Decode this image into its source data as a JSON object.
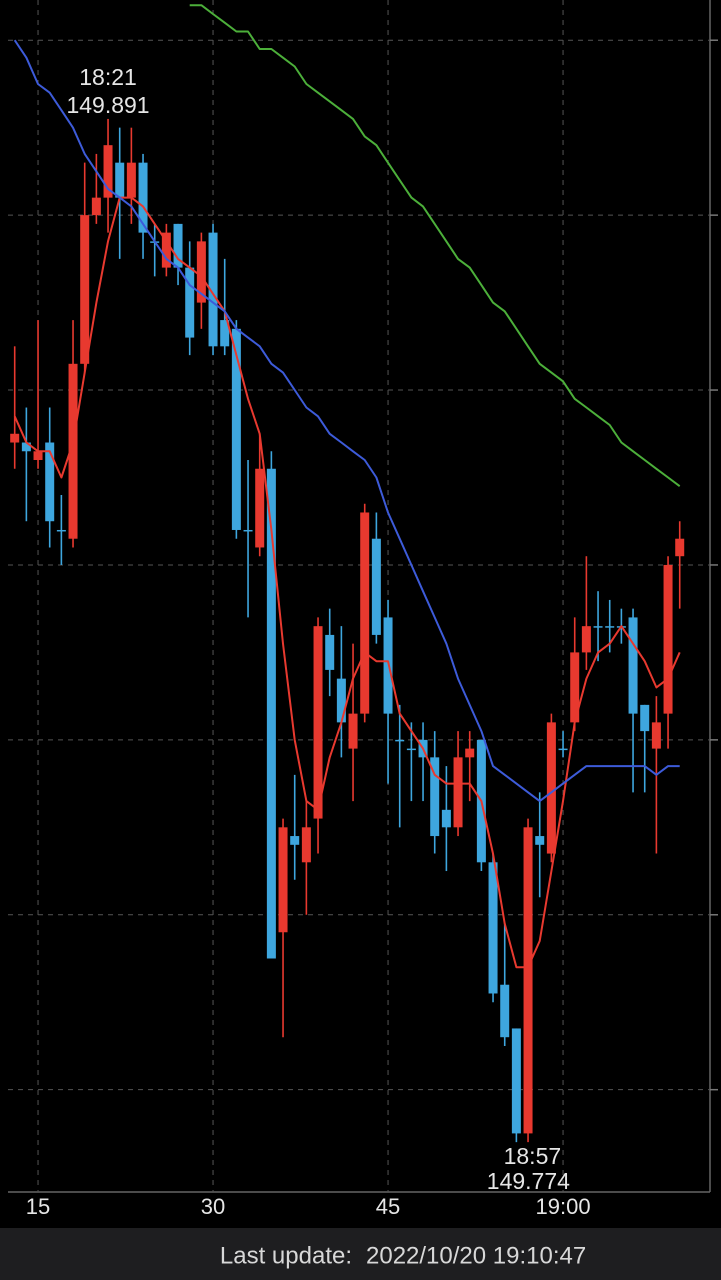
{
  "chart_data": {
    "type": "candlestick",
    "categories": [
      null,
      null,
      "15",
      null,
      null,
      null,
      null,
      null,
      null,
      null,
      null,
      null,
      null,
      null,
      null,
      null,
      null,
      "30",
      null,
      null,
      null,
      null,
      null,
      null,
      null,
      null,
      null,
      null,
      null,
      null,
      null,
      null,
      "45",
      null,
      null,
      null,
      null,
      null,
      null,
      null,
      null,
      null,
      null,
      null,
      null,
      null,
      null,
      "19:00",
      null,
      null,
      null,
      null,
      null,
      null,
      null,
      null,
      null,
      null
    ],
    "open": [
      149.854,
      149.854,
      149.852,
      149.854,
      149.844,
      149.843,
      149.863,
      149.88,
      149.882,
      149.886,
      149.882,
      149.886,
      149.877,
      149.874,
      149.879,
      149.874,
      149.87,
      149.878,
      149.868,
      149.867,
      149.844,
      149.842,
      149.851,
      149.798,
      149.809,
      149.806,
      149.811,
      149.832,
      149.827,
      149.819,
      149.823,
      149.843,
      149.834,
      149.82,
      149.819,
      149.82,
      149.818,
      149.812,
      149.81,
      149.818,
      149.82,
      149.806,
      149.792,
      149.787,
      149.775,
      149.809,
      149.807,
      149.819,
      149.822,
      149.83,
      149.833,
      149.833,
      149.833,
      149.834,
      149.824,
      149.819,
      149.823,
      149.841
    ],
    "high": [
      149.865,
      149.858,
      149.868,
      149.858,
      149.848,
      149.868,
      149.886,
      149.887,
      149.891,
      149.89,
      149.89,
      149.887,
      149.879,
      149.879,
      149.879,
      149.877,
      149.878,
      149.879,
      149.875,
      149.868,
      149.852,
      149.855,
      149.853,
      149.811,
      149.816,
      149.813,
      149.834,
      149.835,
      149.833,
      149.831,
      149.847,
      149.846,
      149.836,
      149.824,
      149.822,
      149.822,
      149.821,
      149.817,
      149.821,
      149.821,
      149.82,
      149.807,
      149.799,
      149.787,
      149.811,
      149.814,
      149.823,
      149.821,
      149.834,
      149.841,
      149.837,
      149.836,
      149.835,
      149.835,
      149.824,
      149.825,
      149.841,
      149.845
    ],
    "low": [
      149.851,
      149.845,
      149.851,
      149.842,
      149.84,
      149.842,
      149.862,
      149.879,
      149.878,
      149.875,
      149.879,
      149.875,
      149.873,
      149.873,
      149.872,
      149.864,
      149.867,
      149.864,
      149.864,
      149.843,
      149.834,
      149.841,
      149.795,
      149.786,
      149.804,
      149.8,
      149.807,
      149.825,
      149.818,
      149.813,
      149.822,
      149.831,
      149.815,
      149.81,
      149.813,
      149.813,
      149.807,
      149.805,
      149.809,
      149.813,
      149.805,
      149.79,
      149.785,
      149.774,
      149.774,
      149.802,
      149.806,
      149.818,
      149.821,
      149.828,
      149.829,
      149.83,
      149.831,
      149.814,
      149.814,
      149.807,
      149.819,
      149.835
    ],
    "close": [
      149.855,
      149.853,
      149.853,
      149.845,
      149.844,
      149.863,
      149.88,
      149.882,
      149.888,
      149.882,
      149.886,
      149.878,
      149.877,
      149.878,
      149.874,
      149.866,
      149.877,
      149.865,
      149.865,
      149.844,
      149.844,
      149.851,
      149.795,
      149.81,
      149.808,
      149.81,
      149.833,
      149.828,
      149.822,
      149.823,
      149.846,
      149.832,
      149.823,
      149.82,
      149.819,
      149.818,
      149.809,
      149.81,
      149.818,
      149.819,
      149.806,
      149.791,
      149.786,
      149.775,
      149.81,
      149.808,
      149.822,
      149.819,
      149.83,
      149.833,
      149.833,
      149.833,
      149.833,
      149.823,
      149.821,
      149.822,
      149.84,
      149.843
    ],
    "up_color": "#e8392f",
    "down_color": "#3ea6de",
    "series": [
      {
        "color": "#e8392f",
        "values": [
          149.857,
          149.854,
          149.853,
          149.853,
          149.85,
          149.854,
          149.862,
          149.87,
          149.877,
          149.882,
          149.882,
          149.881,
          149.879,
          149.877,
          149.875,
          149.874,
          149.873,
          149.871,
          149.869,
          149.864,
          149.859,
          149.855,
          149.844,
          149.831,
          149.82,
          149.813,
          149.812,
          149.818,
          149.822,
          149.827,
          149.83,
          149.829,
          149.829,
          149.823,
          149.821,
          149.819,
          149.816,
          149.815,
          149.815,
          149.815,
          149.813,
          149.807,
          149.799,
          149.794,
          149.794,
          149.797,
          149.805,
          149.813,
          149.822,
          149.827,
          149.83,
          149.831,
          149.833,
          149.831,
          149.829,
          149.826,
          149.827,
          149.83
        ]
      },
      {
        "color": "#3d5bd9",
        "values": [
          149.9,
          149.898,
          149.895,
          149.894,
          149.892,
          149.89,
          149.887,
          149.885,
          149.883,
          149.882,
          149.881,
          149.879,
          149.877,
          149.875,
          149.874,
          149.872,
          149.871,
          149.87,
          149.869,
          149.867,
          149.866,
          149.865,
          149.863,
          149.862,
          149.86,
          149.858,
          149.857,
          149.855,
          149.854,
          149.853,
          149.852,
          149.85,
          149.846,
          149.843,
          149.84,
          149.837,
          149.834,
          149.831,
          149.827,
          149.824,
          149.821,
          149.817,
          149.816,
          149.815,
          149.814,
          149.813,
          149.814,
          149.815,
          149.816,
          149.817,
          149.817,
          149.817,
          149.817,
          149.817,
          149.817,
          149.816,
          149.817,
          149.817
        ]
      },
      {
        "color": "#4caf3a",
        "values": [
          null,
          null,
          null,
          null,
          null,
          null,
          null,
          null,
          null,
          null,
          null,
          null,
          null,
          null,
          null,
          149.904,
          149.904,
          149.903,
          149.902,
          149.901,
          149.901,
          149.899,
          149.899,
          149.898,
          149.897,
          149.895,
          149.894,
          149.893,
          149.892,
          149.891,
          149.889,
          149.888,
          149.886,
          149.884,
          149.882,
          149.881,
          149.879,
          149.877,
          149.875,
          149.874,
          149.872,
          149.87,
          149.869,
          149.867,
          149.865,
          149.863,
          149.862,
          149.861,
          149.859,
          149.858,
          149.857,
          149.856,
          149.854,
          149.853,
          149.852,
          149.851,
          149.85,
          149.849
        ]
      }
    ],
    "ylim": [
      149.7683,
      149.9046
    ],
    "yticks": [
      149.78,
      149.8,
      149.82,
      149.84,
      149.86,
      149.88,
      149.9
    ],
    "grid": true,
    "annotations": [
      {
        "label": "18:21",
        "value": 149.891,
        "kind": "high"
      },
      {
        "label": "18:57",
        "value": 149.774,
        "kind": "low"
      }
    ]
  },
  "footer": {
    "label": "Last update:",
    "timestamp": "2022/10/20 19:10:47"
  }
}
